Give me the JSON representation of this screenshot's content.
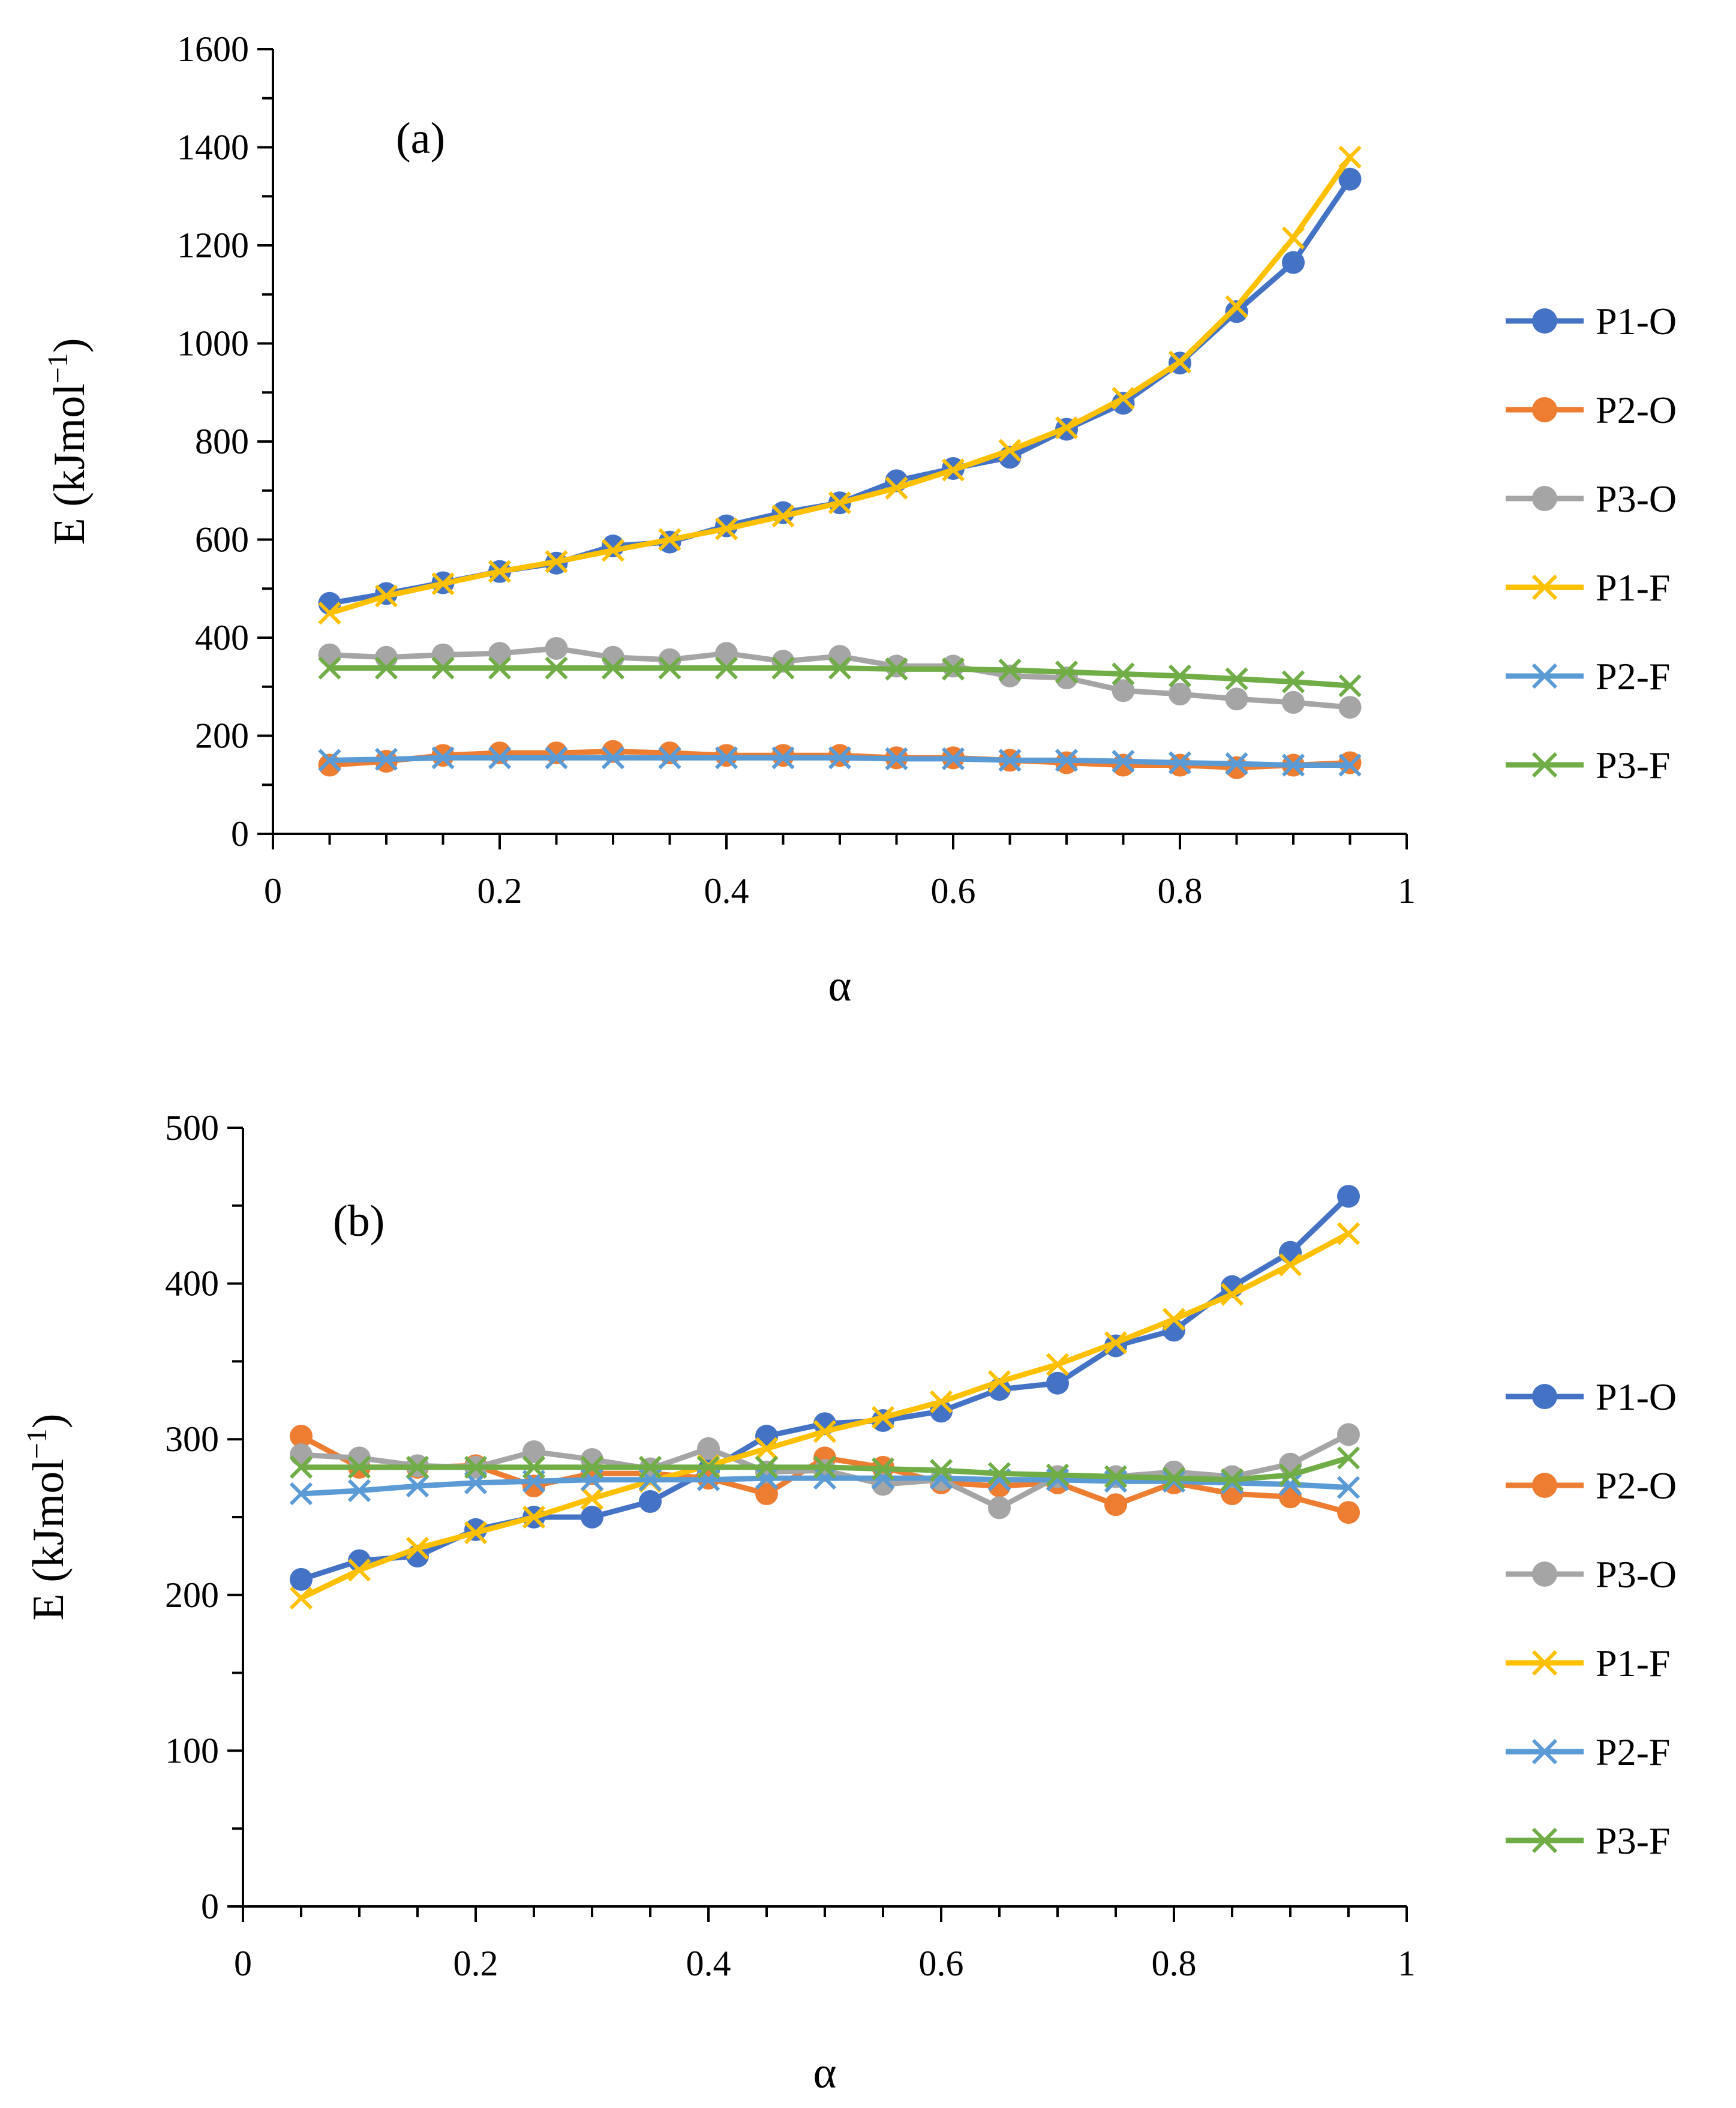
{
  "chart_data": [
    {
      "type": "line",
      "panel_label": "(a)",
      "xlabel": "α",
      "ylabel": "E (kJmol",
      "ylabel_sup": "−1",
      "ylabel_close": ")",
      "xlim": [
        0,
        1
      ],
      "ylim": [
        0,
        1600
      ],
      "xticks": [
        0,
        0.2,
        0.4,
        0.6,
        0.8,
        1
      ],
      "xtick_labels": [
        "0",
        "0.2",
        "0.4",
        "0.6",
        "0.8",
        "1"
      ],
      "yticks": [
        0,
        200,
        400,
        600,
        800,
        1000,
        1200,
        1400,
        1600
      ],
      "ytick_labels": [
        "0",
        "200",
        "400",
        "600",
        "800",
        "1000",
        "1200",
        "1400",
        "1600"
      ],
      "legend_position": "right",
      "x": [
        0.05,
        0.1,
        0.15,
        0.2,
        0.25,
        0.3,
        0.35,
        0.4,
        0.45,
        0.5,
        0.55,
        0.6,
        0.65,
        0.7,
        0.75,
        0.8,
        0.85,
        0.9,
        0.95
      ],
      "series": [
        {
          "name": "P1-O",
          "color": "#4472C4",
          "marker": "circle",
          "values": [
            470,
            490,
            512,
            535,
            552,
            587,
            595,
            628,
            655,
            675,
            720,
            745,
            768,
            825,
            878,
            960,
            1065,
            1165,
            1335
          ]
        },
        {
          "name": "P2-O",
          "color": "#ED7D31",
          "marker": "circle",
          "values": [
            140,
            148,
            160,
            165,
            165,
            168,
            165,
            160,
            160,
            160,
            155,
            155,
            150,
            145,
            140,
            140,
            135,
            140,
            145
          ]
        },
        {
          "name": "P3-O",
          "color": "#A5A5A5",
          "marker": "circle",
          "values": [
            365,
            360,
            365,
            368,
            378,
            360,
            355,
            368,
            352,
            362,
            342,
            342,
            322,
            318,
            292,
            285,
            275,
            268,
            258
          ]
        },
        {
          "name": "P1-F",
          "color": "#FFC000",
          "marker": "x",
          "values": [
            450,
            485,
            510,
            535,
            555,
            578,
            600,
            622,
            648,
            675,
            705,
            742,
            782,
            828,
            888,
            962,
            1075,
            1215,
            1380
          ]
        },
        {
          "name": "P2-F",
          "color": "#5B9BD5",
          "marker": "x",
          "values": [
            150,
            152,
            155,
            155,
            155,
            155,
            155,
            155,
            155,
            155,
            153,
            153,
            150,
            150,
            148,
            145,
            143,
            140,
            140
          ]
        },
        {
          "name": "P3-F",
          "color": "#70AD47",
          "marker": "x",
          "values": [
            338,
            338,
            338,
            338,
            338,
            338,
            338,
            338,
            338,
            338,
            336,
            336,
            334,
            330,
            326,
            322,
            316,
            310,
            302
          ]
        }
      ]
    },
    {
      "type": "line",
      "panel_label": "(b)",
      "xlabel": "α",
      "ylabel": "E (kJmol",
      "ylabel_sup": "−1",
      "ylabel_close": ")",
      "xlim": [
        0,
        1
      ],
      "ylim": [
        0,
        500
      ],
      "xticks": [
        0,
        0.2,
        0.4,
        0.6,
        0.8,
        1
      ],
      "xtick_labels": [
        "0",
        "0.2",
        "0.4",
        "0.6",
        "0.8",
        "1"
      ],
      "yticks": [
        0,
        100,
        200,
        300,
        400,
        500
      ],
      "ytick_labels": [
        "0",
        "100",
        "200",
        "300",
        "400",
        "500"
      ],
      "legend_position": "right",
      "x": [
        0.05,
        0.1,
        0.15,
        0.2,
        0.25,
        0.3,
        0.35,
        0.4,
        0.45,
        0.5,
        0.55,
        0.6,
        0.65,
        0.7,
        0.75,
        0.8,
        0.85,
        0.9,
        0.95
      ],
      "series": [
        {
          "name": "P1-O",
          "color": "#4472C4",
          "marker": "circle",
          "values": [
            210,
            222,
            225,
            242,
            250,
            250,
            260,
            280,
            302,
            310,
            312,
            318,
            332,
            336,
            360,
            370,
            398,
            420,
            456
          ]
        },
        {
          "name": "P2-O",
          "color": "#ED7D31",
          "marker": "circle",
          "values": [
            302,
            282,
            282,
            283,
            270,
            278,
            278,
            275,
            265,
            288,
            282,
            272,
            270,
            272,
            258,
            272,
            265,
            263,
            253
          ]
        },
        {
          "name": "P3-O",
          "color": "#A5A5A5",
          "marker": "circle",
          "values": [
            290,
            288,
            283,
            282,
            292,
            287,
            281,
            294,
            279,
            280,
            271,
            274,
            256,
            276,
            276,
            279,
            276,
            284,
            303
          ]
        },
        {
          "name": "P1-F",
          "color": "#FFC000",
          "marker": "x",
          "values": [
            198,
            216,
            230,
            240,
            250,
            262,
            273,
            283,
            294,
            305,
            314,
            324,
            337,
            348,
            362,
            377,
            393,
            412,
            432
          ]
        },
        {
          "name": "P2-F",
          "color": "#5B9BD5",
          "marker": "x",
          "values": [
            265,
            267,
            270,
            272,
            273,
            274,
            274,
            274,
            275,
            275,
            275,
            275,
            274,
            274,
            273,
            273,
            272,
            271,
            269
          ]
        },
        {
          "name": "P3-F",
          "color": "#70AD47",
          "marker": "x",
          "values": [
            282,
            282,
            282,
            282,
            282,
            282,
            282,
            282,
            282,
            282,
            281,
            280,
            278,
            277,
            276,
            275,
            274,
            277,
            288
          ]
        }
      ]
    }
  ]
}
